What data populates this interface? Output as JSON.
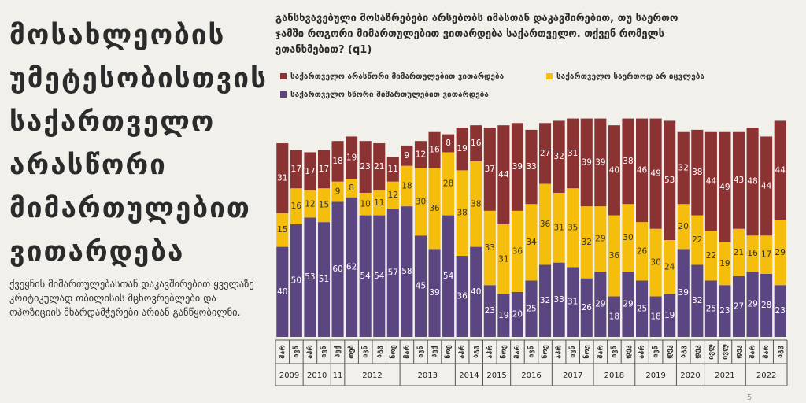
{
  "left_panel": {
    "title": "მოსახლეობის უმეტესობისთვის საქართველო არასწორი მიმართულებით ვითარდება",
    "text": "ქვეყნის მიმართულებასთან დაკავშირებით ყველაზე კრიტიკულად თბილისის მცხოვრებლები და ოპოზიციის მხარდამჭერები არიან განწყობილნი."
  },
  "chart_data": {
    "type": "bar",
    "stacked": true,
    "title": "განსხვავებული მოსაზრებები არსებობს იმასთან დაკავშირებით, თუ საერთო ჯამში როგორი მიმართულებით ვითარდება საქართველო. თქვენ რომელს ეთანხმებით? (q1)",
    "groups": [
      {
        "label": "2009",
        "categories": [
          "მარ",
          "ივნ"
        ]
      },
      {
        "label": "2010",
        "categories": [
          "აპრ",
          "ივნ"
        ]
      },
      {
        "label": "11",
        "categories": [
          "სექ"
        ]
      },
      {
        "label": "2012",
        "categories": [
          "თებ",
          "ივნ",
          "აგვ",
          "ნოე"
        ]
      },
      {
        "label": "2013",
        "categories": [
          "მარ",
          "ივნ",
          "სექ",
          "ნოე"
        ]
      },
      {
        "label": "2014",
        "categories": [
          "აპრ",
          "აგვ"
        ]
      },
      {
        "label": "2015",
        "categories": [
          "აპრ",
          "ნოე"
        ]
      },
      {
        "label": "2016",
        "categories": [
          "მარ",
          "ივნ",
          "ნოე"
        ]
      },
      {
        "label": "2017",
        "categories": [
          "აპრ",
          "ივნ",
          "ნოე"
        ]
      },
      {
        "label": "2018",
        "categories": [
          "მარ",
          "ივნ",
          "დეკ"
        ]
      },
      {
        "label": "2019",
        "categories": [
          "აპრ",
          "ივნ",
          "დეკ"
        ]
      },
      {
        "label": "2020",
        "categories": [
          "აგვ",
          "დეკ"
        ]
      },
      {
        "label": "2021",
        "categories": [
          "ივლ",
          "ივლ",
          "დეკ"
        ]
      },
      {
        "label": "2022",
        "categories": [
          "მარ",
          "მარ",
          "აგვ"
        ]
      }
    ],
    "ylim": [
      0,
      100
    ],
    "series": [
      {
        "name": "საქართველო სწორი მიმართულებით ვითარდება",
        "color": "#5b4682",
        "values": [
          40,
          50,
          53,
          51,
          60,
          62,
          54,
          54,
          57,
          58,
          45,
          39,
          54,
          36,
          40,
          23,
          19,
          20,
          25,
          32,
          33,
          31,
          26,
          29,
          18,
          29,
          25,
          18,
          19,
          39,
          32,
          25,
          23,
          27,
          29,
          28,
          23
        ]
      },
      {
        "name": "საქართველო საერთოდ არ იცვლება",
        "color": "#f5bd0c",
        "values": [
          15,
          16,
          12,
          15,
          9,
          8,
          10,
          11,
          12,
          18,
          30,
          36,
          28,
          38,
          38,
          33,
          31,
          36,
          34,
          36,
          31,
          35,
          32,
          29,
          36,
          30,
          26,
          30,
          24,
          20,
          22,
          22,
          19,
          21,
          16,
          17,
          29
        ]
      },
      {
        "name": "საქართველო არასწორი მიმართულებით ვითარდება",
        "color": "#8b3232",
        "values": [
          31,
          17,
          17,
          17,
          18,
          19,
          23,
          21,
          11,
          9,
          12,
          16,
          8,
          19,
          16,
          37,
          44,
          39,
          33,
          27,
          32,
          31,
          39,
          39,
          40,
          38,
          46,
          49,
          53,
          32,
          38,
          44,
          49,
          43,
          48,
          44,
          44
        ]
      }
    ],
    "page_number": "5"
  }
}
